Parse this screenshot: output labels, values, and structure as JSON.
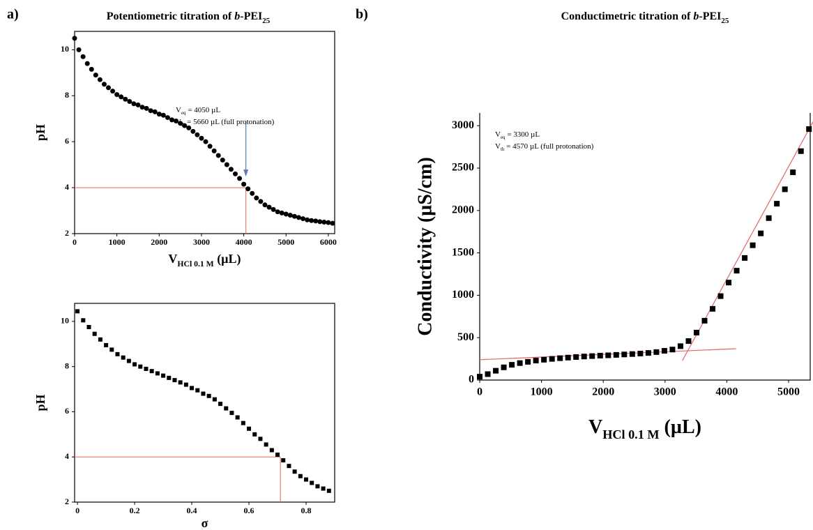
{
  "panel_labels": [
    "a)",
    "b)"
  ],
  "chart_data": [
    {
      "type": "scatter",
      "title": [
        "Potentiometric titration of ",
        "b",
        "-PEI",
        "25"
      ],
      "xlabel": [
        "V",
        "HCl 0.1 M",
        " (µL)"
      ],
      "ylabel": "pH",
      "marker": "circle",
      "color": "#000000",
      "x": [
        0,
        100,
        200,
        300,
        400,
        500,
        600,
        700,
        800,
        900,
        1000,
        1100,
        1200,
        1300,
        1400,
        1500,
        1600,
        1700,
        1800,
        1900,
        2000,
        2100,
        2200,
        2300,
        2400,
        2500,
        2600,
        2700,
        2800,
        2900,
        3000,
        3100,
        3200,
        3300,
        3400,
        3500,
        3600,
        3700,
        3800,
        3900,
        4000,
        4100,
        4200,
        4300,
        4400,
        4500,
        4600,
        4700,
        4800,
        4900,
        5000,
        5100,
        5200,
        5300,
        5400,
        5500,
        5600,
        5700,
        5800,
        5900,
        6000,
        6100
      ],
      "values": [
        10.5,
        10.0,
        9.7,
        9.4,
        9.15,
        8.9,
        8.7,
        8.5,
        8.35,
        8.2,
        8.05,
        7.95,
        7.85,
        7.75,
        7.65,
        7.6,
        7.5,
        7.45,
        7.35,
        7.3,
        7.2,
        7.15,
        7.05,
        6.95,
        6.9,
        6.8,
        6.7,
        6.6,
        6.45,
        6.3,
        6.15,
        6.0,
        5.8,
        5.6,
        5.4,
        5.2,
        5.0,
        4.8,
        4.6,
        4.4,
        4.15,
        3.95,
        3.75,
        3.55,
        3.4,
        3.25,
        3.15,
        3.05,
        2.95,
        2.9,
        2.85,
        2.8,
        2.75,
        2.7,
        2.65,
        2.6,
        2.57,
        2.55,
        2.52,
        2.5,
        2.48,
        2.45
      ],
      "xlim": [
        0,
        6150
      ],
      "xticks": [
        0,
        1000,
        2000,
        3000,
        4000,
        5000,
        6000
      ],
      "ylim": [
        2,
        10.8
      ],
      "yticks": [
        2,
        4,
        6,
        8,
        10
      ],
      "guide": {
        "x": 4050,
        "y": 4,
        "color": "#e06666"
      },
      "arrow_color": "#5b7bb4",
      "annotations": [
        [
          "V",
          "eq",
          " = 4050 µL"
        ],
        [
          "V",
          "th",
          " = 5660 µL (full protonation)"
        ]
      ]
    },
    {
      "type": "scatter",
      "xlabel": [
        "σ"
      ],
      "ylabel": "pH",
      "marker": "square",
      "color": "#000000",
      "x": [
        0,
        0.02,
        0.04,
        0.06,
        0.08,
        0.1,
        0.12,
        0.14,
        0.16,
        0.18,
        0.2,
        0.22,
        0.24,
        0.26,
        0.28,
        0.3,
        0.32,
        0.34,
        0.36,
        0.38,
        0.4,
        0.42,
        0.44,
        0.46,
        0.48,
        0.5,
        0.52,
        0.54,
        0.56,
        0.58,
        0.6,
        0.62,
        0.64,
        0.66,
        0.68,
        0.7,
        0.72,
        0.74,
        0.76,
        0.78,
        0.8,
        0.82,
        0.84,
        0.86,
        0.88
      ],
      "values": [
        10.45,
        10.05,
        9.75,
        9.45,
        9.2,
        8.95,
        8.75,
        8.55,
        8.4,
        8.25,
        8.1,
        8.0,
        7.9,
        7.8,
        7.7,
        7.6,
        7.5,
        7.4,
        7.3,
        7.2,
        7.05,
        6.95,
        6.8,
        6.7,
        6.55,
        6.35,
        6.15,
        5.95,
        5.75,
        5.5,
        5.25,
        5.0,
        4.8,
        4.55,
        4.3,
        4.1,
        3.85,
        3.6,
        3.35,
        3.15,
        3.0,
        2.85,
        2.7,
        2.6,
        2.5
      ],
      "xlim": [
        -0.01,
        0.9
      ],
      "xticks": [
        0,
        0.2,
        0.4,
        0.6,
        0.8
      ],
      "ylim": [
        2,
        10.8
      ],
      "yticks": [
        2,
        4,
        6,
        8,
        10
      ],
      "guide": {
        "x": 0.71,
        "y": 4,
        "color": "#e06666"
      }
    },
    {
      "type": "scatter",
      "title": [
        "Conductimetric titration of ",
        "b",
        "-PEI",
        "25"
      ],
      "xlabel": [
        "V",
        "HCl 0.1 M",
        " (µL)"
      ],
      "ylabel": "Conductivity (µS/cm)",
      "marker": "square",
      "color": "#000000",
      "x": [
        0,
        130,
        260,
        390,
        520,
        650,
        780,
        910,
        1040,
        1170,
        1300,
        1430,
        1560,
        1690,
        1820,
        1950,
        2080,
        2210,
        2340,
        2470,
        2600,
        2730,
        2860,
        2990,
        3120,
        3250,
        3380,
        3510,
        3640,
        3770,
        3900,
        4030,
        4160,
        4290,
        4420,
        4550,
        4680,
        4810,
        4940,
        5070,
        5200,
        5330
      ],
      "values": [
        40,
        70,
        110,
        150,
        180,
        200,
        215,
        230,
        240,
        250,
        258,
        265,
        272,
        278,
        283,
        288,
        292,
        297,
        302,
        307,
        313,
        320,
        330,
        345,
        360,
        400,
        460,
        560,
        700,
        840,
        990,
        1150,
        1290,
        1440,
        1590,
        1730,
        1910,
        2080,
        2250,
        2450,
        2700,
        2960
      ],
      "xlim": [
        0,
        5350
      ],
      "xticks": [
        0,
        1000,
        2000,
        3000,
        4000,
        5000
      ],
      "ylim": [
        0,
        3150
      ],
      "yticks": [
        0,
        500,
        1000,
        1500,
        2000,
        2500,
        3000
      ],
      "fit_lines": [
        {
          "x": [
            0,
            4150
          ],
          "y": [
            240,
            370
          ],
          "color": "#e06666"
        },
        {
          "x": [
            3280,
            5400
          ],
          "y": [
            230,
            3050
          ],
          "color": "#e06666"
        }
      ],
      "annotations": [
        [
          "V",
          "eq",
          " = 3300 µL"
        ],
        [
          "V",
          "th",
          " = 4570 µL (full protonation)"
        ]
      ]
    }
  ]
}
